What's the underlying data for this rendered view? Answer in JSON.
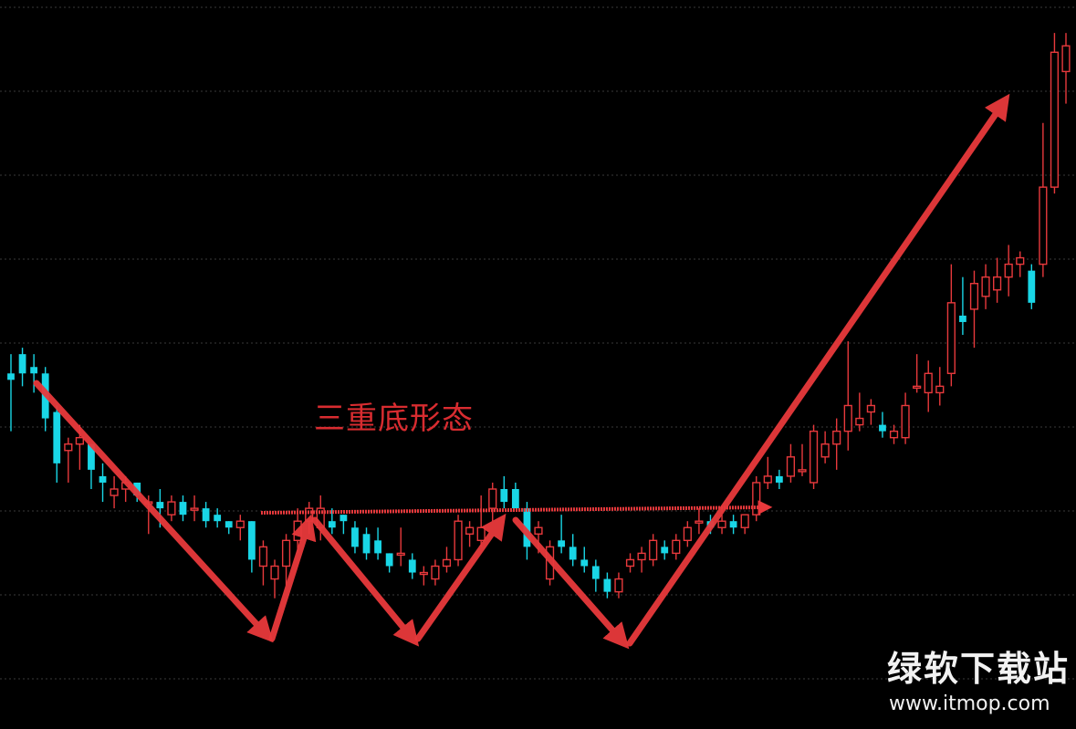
{
  "chart_data": {
    "type": "candlestick",
    "title": "",
    "annotation": "三重底形态",
    "xlabel": "",
    "ylabel": "",
    "grid": true,
    "colors": {
      "up": "#e8393c",
      "down": "#19d6e6",
      "background": "#000000",
      "grid": "#3a3a3a"
    },
    "ylim": [
      0,
      100
    ],
    "candles": [
      {
        "o": 43,
        "h": 46,
        "l": 34,
        "c": 42
      },
      {
        "o": 46,
        "h": 47,
        "l": 41,
        "c": 43
      },
      {
        "o": 44,
        "h": 46,
        "l": 40,
        "c": 43
      },
      {
        "o": 43,
        "h": 44,
        "l": 34,
        "c": 36
      },
      {
        "o": 37,
        "h": 38,
        "l": 26,
        "c": 29
      },
      {
        "o": 31,
        "h": 33,
        "l": 26,
        "c": 32
      },
      {
        "o": 32,
        "h": 35,
        "l": 28,
        "c": 33
      },
      {
        "o": 32,
        "h": 32,
        "l": 25,
        "c": 28
      },
      {
        "o": 27,
        "h": 29,
        "l": 23,
        "c": 26
      },
      {
        "o": 24,
        "h": 27,
        "l": 22,
        "c": 25
      },
      {
        "o": 25,
        "h": 27,
        "l": 23,
        "c": 26
      },
      {
        "o": 26,
        "h": 26,
        "l": 23,
        "c": 24
      },
      {
        "o": 23,
        "h": 24,
        "l": 18,
        "c": 23
      },
      {
        "o": 23,
        "h": 25,
        "l": 19,
        "c": 22
      },
      {
        "o": 21,
        "h": 24,
        "l": 20,
        "c": 23
      },
      {
        "o": 23,
        "h": 24,
        "l": 20,
        "c": 21
      },
      {
        "o": 22,
        "h": 24,
        "l": 20,
        "c": 22
      },
      {
        "o": 22,
        "h": 23,
        "l": 19,
        "c": 20
      },
      {
        "o": 21,
        "h": 22,
        "l": 19,
        "c": 20
      },
      {
        "o": 20,
        "h": 20,
        "l": 18,
        "c": 19
      },
      {
        "o": 19,
        "h": 21,
        "l": 17,
        "c": 20
      },
      {
        "o": 20,
        "h": 20,
        "l": 12,
        "c": 14
      },
      {
        "o": 13,
        "h": 17,
        "l": 10,
        "c": 16
      },
      {
        "o": 11,
        "h": 14,
        "l": 8,
        "c": 13
      },
      {
        "o": 13,
        "h": 18,
        "l": 10,
        "c": 17
      },
      {
        "o": 17,
        "h": 22,
        "l": 15,
        "c": 20
      },
      {
        "o": 20,
        "h": 23,
        "l": 18,
        "c": 22
      },
      {
        "o": 19,
        "h": 24,
        "l": 17,
        "c": 22
      },
      {
        "o": 20,
        "h": 22,
        "l": 18,
        "c": 19
      },
      {
        "o": 21,
        "h": 21,
        "l": 18,
        "c": 20
      },
      {
        "o": 19,
        "h": 20,
        "l": 15,
        "c": 16
      },
      {
        "o": 18,
        "h": 19,
        "l": 14,
        "c": 15
      },
      {
        "o": 17,
        "h": 19,
        "l": 14,
        "c": 15
      },
      {
        "o": 15,
        "h": 15,
        "l": 12,
        "c": 13
      },
      {
        "o": 15,
        "h": 19,
        "l": 13,
        "c": 15
      },
      {
        "o": 14,
        "h": 15,
        "l": 11,
        "c": 12
      },
      {
        "o": 12,
        "h": 13,
        "l": 10,
        "c": 12
      },
      {
        "o": 11,
        "h": 14,
        "l": 10,
        "c": 13
      },
      {
        "o": 13,
        "h": 16,
        "l": 12,
        "c": 14
      },
      {
        "o": 14,
        "h": 21,
        "l": 13,
        "c": 20
      },
      {
        "o": 18,
        "h": 20,
        "l": 16,
        "c": 19
      },
      {
        "o": 17,
        "h": 24,
        "l": 16,
        "c": 19
      },
      {
        "o": 22,
        "h": 26,
        "l": 20,
        "c": 25
      },
      {
        "o": 25,
        "h": 27,
        "l": 22,
        "c": 23
      },
      {
        "o": 25,
        "h": 26,
        "l": 22,
        "c": 22
      },
      {
        "o": 22,
        "h": 23,
        "l": 14,
        "c": 16
      },
      {
        "o": 18,
        "h": 20,
        "l": 15,
        "c": 19
      },
      {
        "o": 11,
        "h": 17,
        "l": 10,
        "c": 16
      },
      {
        "o": 17,
        "h": 21,
        "l": 15,
        "c": 16
      },
      {
        "o": 16,
        "h": 18,
        "l": 13,
        "c": 14
      },
      {
        "o": 14,
        "h": 16,
        "l": 12,
        "c": 13
      },
      {
        "o": 13,
        "h": 14,
        "l": 9,
        "c": 11
      },
      {
        "o": 11,
        "h": 12,
        "l": 8,
        "c": 9
      },
      {
        "o": 9,
        "h": 12,
        "l": 8,
        "c": 11
      },
      {
        "o": 13,
        "h": 15,
        "l": 12,
        "c": 14
      },
      {
        "o": 14,
        "h": 16,
        "l": 12,
        "c": 15
      },
      {
        "o": 14,
        "h": 18,
        "l": 13,
        "c": 17
      },
      {
        "o": 16,
        "h": 17,
        "l": 14,
        "c": 15
      },
      {
        "o": 15,
        "h": 18,
        "l": 14,
        "c": 17
      },
      {
        "o": 17,
        "h": 20,
        "l": 16,
        "c": 19
      },
      {
        "o": 20,
        "h": 22,
        "l": 18,
        "c": 20
      },
      {
        "o": 20,
        "h": 21,
        "l": 18,
        "c": 19
      },
      {
        "o": 19,
        "h": 21,
        "l": 18,
        "c": 20
      },
      {
        "o": 20,
        "h": 21,
        "l": 18,
        "c": 19
      },
      {
        "o": 19,
        "h": 21,
        "l": 18,
        "c": 21
      },
      {
        "o": 21,
        "h": 27,
        "l": 20,
        "c": 26
      },
      {
        "o": 26,
        "h": 30,
        "l": 25,
        "c": 27
      },
      {
        "o": 27,
        "h": 28,
        "l": 25,
        "c": 26
      },
      {
        "o": 27,
        "h": 32,
        "l": 26,
        "c": 30
      },
      {
        "o": 28,
        "h": 32,
        "l": 27,
        "c": 28
      },
      {
        "o": 26,
        "h": 35,
        "l": 25,
        "c": 34
      },
      {
        "o": 30,
        "h": 34,
        "l": 29,
        "c": 32
      },
      {
        "o": 32,
        "h": 36,
        "l": 28,
        "c": 34
      },
      {
        "o": 34,
        "h": 48,
        "l": 31,
        "c": 38
      },
      {
        "o": 35,
        "h": 40,
        "l": 34,
        "c": 36
      },
      {
        "o": 37,
        "h": 39,
        "l": 35,
        "c": 38
      },
      {
        "o": 35,
        "h": 37,
        "l": 33,
        "c": 34
      },
      {
        "o": 33,
        "h": 35,
        "l": 32,
        "c": 34
      },
      {
        "o": 33,
        "h": 40,
        "l": 32,
        "c": 38
      },
      {
        "o": 41,
        "h": 46,
        "l": 40,
        "c": 41
      },
      {
        "o": 40,
        "h": 45,
        "l": 37,
        "c": 43
      },
      {
        "o": 40,
        "h": 44,
        "l": 38,
        "c": 41
      },
      {
        "o": 43,
        "h": 60,
        "l": 41,
        "c": 54
      },
      {
        "o": 52,
        "h": 58,
        "l": 49,
        "c": 51
      },
      {
        "o": 53,
        "h": 59,
        "l": 47,
        "c": 57
      },
      {
        "o": 55,
        "h": 60,
        "l": 53,
        "c": 58
      },
      {
        "o": 56,
        "h": 61,
        "l": 54,
        "c": 58
      },
      {
        "o": 58,
        "h": 63,
        "l": 55,
        "c": 60
      },
      {
        "o": 60,
        "h": 62,
        "l": 58,
        "c": 61
      },
      {
        "o": 59,
        "h": 60,
        "l": 53,
        "c": 54
      },
      {
        "o": 60,
        "h": 82,
        "l": 58,
        "c": 72
      },
      {
        "o": 72,
        "h": 96,
        "l": 71,
        "c": 93
      },
      {
        "o": 90,
        "h": 96,
        "l": 85,
        "c": 94
      }
    ]
  },
  "watermark": {
    "name": "绿软下载站",
    "url": "www.itmop.com"
  }
}
